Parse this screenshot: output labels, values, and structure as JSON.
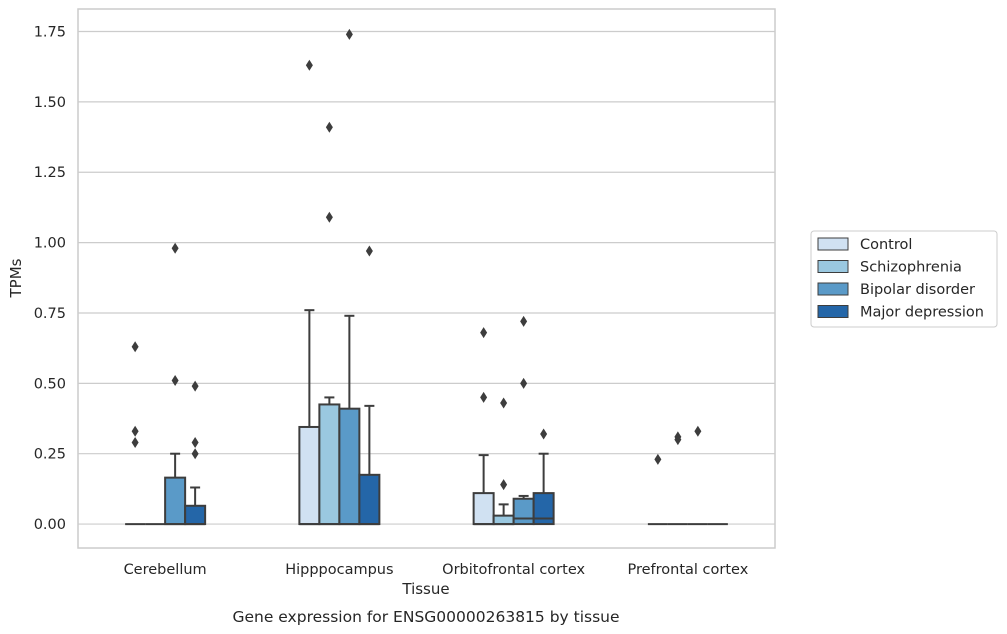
{
  "chart_data": {
    "type": "box",
    "caption": "Gene expression for ENSG00000263815 by tissue",
    "xlabel": "Tissue",
    "ylabel": "TPMs",
    "ylim": [
      -0.085,
      1.83
    ],
    "yticks": [
      "0.00",
      "0.25",
      "0.50",
      "0.75",
      "1.00",
      "1.25",
      "1.50",
      "1.75"
    ],
    "grid": true,
    "legend_position": "right",
    "categories": [
      "Cerebellum",
      "Hipppocampus",
      "Orbitofrontal cortex",
      "Prefrontal cortex"
    ],
    "series": [
      {
        "name": "Control",
        "color": "#d0e1f2",
        "boxes": [
          {
            "q1": 0.0,
            "median": 0.0,
            "q3": 0.0,
            "whisker_low": 0.0,
            "whisker_high": 0.0,
            "outliers": [
              0.63,
              0.33,
              0.29
            ]
          },
          {
            "q1": 0.0,
            "median": 0.0,
            "q3": 0.345,
            "whisker_low": 0.0,
            "whisker_high": 0.76,
            "outliers": [
              1.63
            ]
          },
          {
            "q1": 0.0,
            "median": 0.0,
            "q3": 0.11,
            "whisker_low": 0.0,
            "whisker_high": 0.245,
            "outliers": [
              0.68,
              0.45
            ]
          },
          {
            "q1": 0.0,
            "median": 0.0,
            "q3": 0.0,
            "whisker_low": 0.0,
            "whisker_high": 0.0,
            "outliers": [
              0.23
            ]
          }
        ]
      },
      {
        "name": "Schizophrenia",
        "color": "#9ac8e0",
        "boxes": [
          {
            "q1": 0.0,
            "median": 0.0,
            "q3": 0.0,
            "whisker_low": 0.0,
            "whisker_high": 0.0,
            "outliers": []
          },
          {
            "q1": 0.0,
            "median": 0.0,
            "q3": 0.425,
            "whisker_low": 0.0,
            "whisker_high": 0.45,
            "outliers": [
              1.41,
              1.09
            ]
          },
          {
            "q1": 0.0,
            "median": 0.0,
            "q3": 0.03,
            "whisker_low": 0.0,
            "whisker_high": 0.07,
            "outliers": [
              0.43,
              0.14
            ]
          },
          {
            "q1": 0.0,
            "median": 0.0,
            "q3": 0.0,
            "whisker_low": 0.0,
            "whisker_high": 0.0,
            "outliers": [
              0.31,
              0.3
            ]
          }
        ]
      },
      {
        "name": "Bipolar disorder",
        "color": "#5a9ac8",
        "boxes": [
          {
            "q1": 0.0,
            "median": 0.0,
            "q3": 0.165,
            "whisker_low": 0.0,
            "whisker_high": 0.25,
            "outliers": [
              0.98,
              0.51
            ]
          },
          {
            "q1": 0.0,
            "median": 0.0,
            "q3": 0.41,
            "whisker_low": 0.0,
            "whisker_high": 0.74,
            "outliers": [
              1.74
            ]
          },
          {
            "q1": 0.0,
            "median": 0.02,
            "q3": 0.09,
            "whisker_low": 0.0,
            "whisker_high": 0.1,
            "outliers": [
              0.72,
              0.5
            ]
          },
          {
            "q1": 0.0,
            "median": 0.0,
            "q3": 0.0,
            "whisker_low": 0.0,
            "whisker_high": 0.0,
            "outliers": [
              0.33
            ]
          }
        ]
      },
      {
        "name": "Major depression",
        "color": "#2466a8",
        "boxes": [
          {
            "q1": 0.0,
            "median": 0.0,
            "q3": 0.065,
            "whisker_low": 0.0,
            "whisker_high": 0.13,
            "outliers": [
              0.49,
              0.29,
              0.25
            ]
          },
          {
            "q1": 0.0,
            "median": 0.0,
            "q3": 0.175,
            "whisker_low": 0.0,
            "whisker_high": 0.42,
            "outliers": [
              0.97
            ]
          },
          {
            "q1": 0.0,
            "median": 0.02,
            "q3": 0.11,
            "whisker_low": 0.0,
            "whisker_high": 0.25,
            "outliers": [
              0.32
            ]
          },
          {
            "q1": 0.0,
            "median": 0.0,
            "q3": 0.0,
            "whisker_low": 0.0,
            "whisker_high": 0.0,
            "outliers": []
          }
        ]
      }
    ]
  }
}
